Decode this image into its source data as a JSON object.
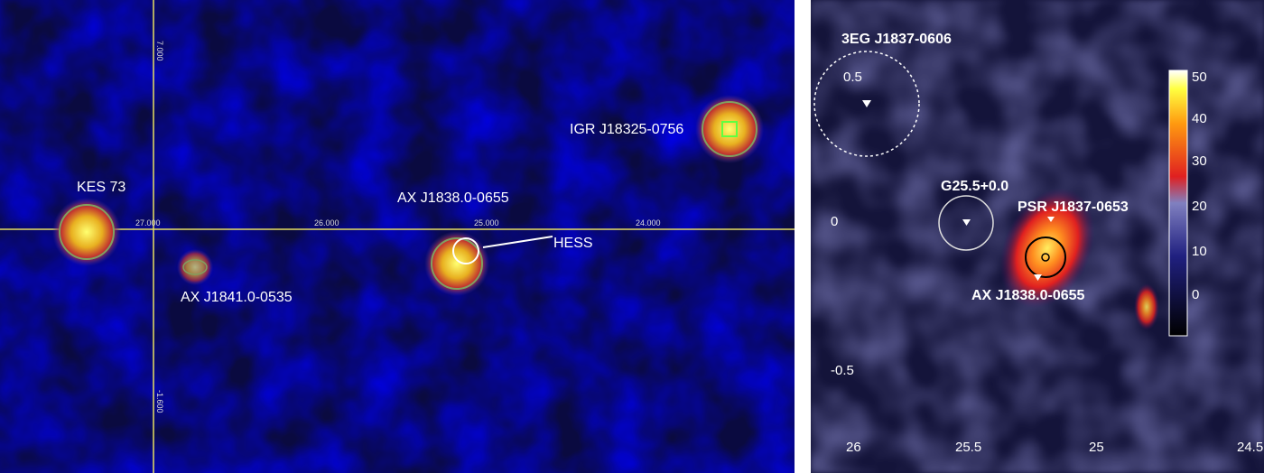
{
  "left_panel": {
    "sources": [
      "KES 73",
      "AX J1841.0-0535",
      "AX J1838.0-0655",
      "HESS",
      "IGR J18325-0756"
    ],
    "x_ticks": [
      "27.000",
      "26.000",
      "25.000",
      "24.000"
    ],
    "y_ticks": [
      "7.000",
      "-1.600"
    ]
  },
  "right_panel": {
    "sources": [
      "3EG J1837-0606",
      "G25.5+0.0",
      "PSR J1837-0653",
      "AX J1838.0-0655"
    ],
    "x_ticks": [
      "26",
      "25.5",
      "25",
      "24.5"
    ],
    "y_ticks": [
      "0.5",
      "0",
      "-0.5"
    ],
    "colorbar_ticks": [
      "50",
      "40",
      "30",
      "20",
      "10",
      "0"
    ]
  }
}
